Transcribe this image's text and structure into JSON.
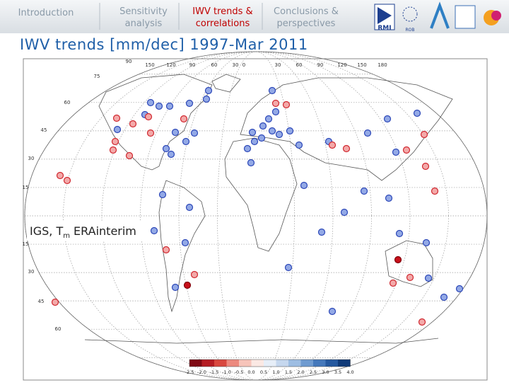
{
  "nav": {
    "tabs": [
      "Introduction",
      "Sensitivity analysis",
      "IWV trends & correlations",
      "Conclusions & perspectives"
    ],
    "active": 2
  },
  "logos": {
    "rmi": "RMI",
    "rob": "ROB"
  },
  "title": "IWV trends [mm/dec] 1997-Mar 2011",
  "annotation": {
    "prefix": "IGS, T",
    "subscript": "m",
    "suffix": " ERAinterim"
  },
  "map": {
    "lon_labels": [
      "90",
      "150",
      "120",
      "90",
      "60",
      "30",
      "0",
      "30",
      "60",
      "90",
      "120",
      "150",
      "180"
    ],
    "lat_labels": [
      "75",
      "60",
      "45",
      "30",
      "15",
      "15",
      "30",
      "45",
      "60"
    ]
  },
  "colorbar": {
    "labels": [
      "-2.5",
      "-2.0",
      "-1.5",
      "-1.0",
      "-0.5",
      "0.0",
      "0.5",
      "1.0",
      "1.5",
      "2.0",
      "2.5",
      "3.0",
      "3.5",
      "4.0"
    ]
  }
}
